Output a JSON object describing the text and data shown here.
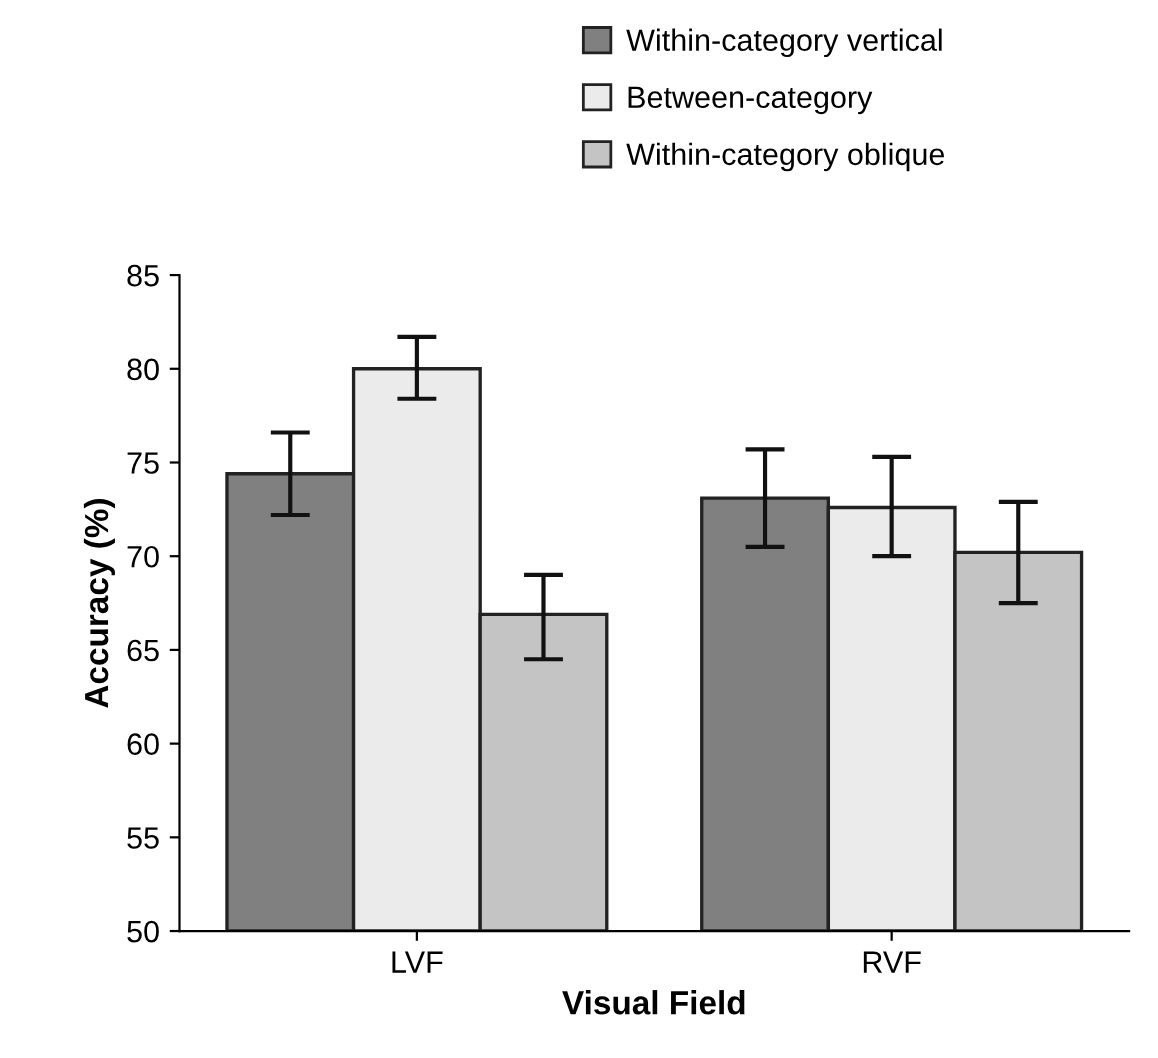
{
  "chart_data": {
    "type": "bar",
    "xlabel": "Visual Field",
    "ylabel": "Accuracy (%)",
    "categories": [
      "LVF",
      "RVF"
    ],
    "series": [
      {
        "name": "Within-category vertical",
        "color": "#808080",
        "values": [
          74.4,
          73.1
        ],
        "errors": [
          [
            72.2,
            76.6
          ],
          [
            70.5,
            75.7
          ]
        ]
      },
      {
        "name": "Between-category",
        "color": "#ebebeb",
        "values": [
          80.0,
          72.6
        ],
        "errors": [
          [
            78.4,
            81.7
          ],
          [
            70.0,
            75.3
          ]
        ]
      },
      {
        "name": "Within-category oblique",
        "color": "#c4c4c4",
        "values": [
          66.9,
          70.2
        ],
        "errors": [
          [
            64.5,
            69.0
          ],
          [
            67.5,
            72.9
          ]
        ]
      }
    ],
    "ylim": [
      50,
      85
    ],
    "yticks": [
      50,
      55,
      60,
      65,
      70,
      75,
      80,
      85
    ],
    "grid": false,
    "legend": "top right"
  }
}
